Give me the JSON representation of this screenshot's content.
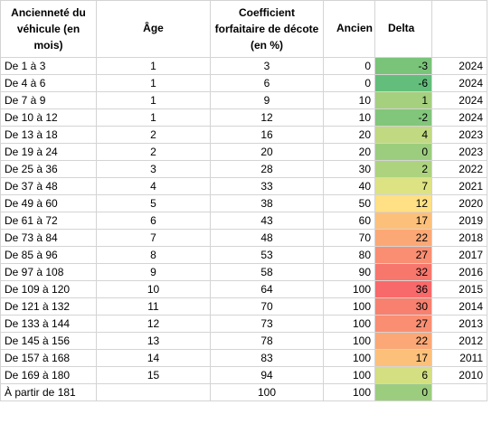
{
  "headers": {
    "anciennete": "Ancienneté du véhicule (en mois)",
    "age": "Âge",
    "coefficient": "Coefficient forfaitaire de décote (en %)",
    "ancien": "Ancien",
    "delta": "Delta",
    "year": ""
  },
  "rows": [
    {
      "label": "De 1 à 3",
      "age": "1",
      "coef": "3",
      "ancien": "0",
      "delta": "-3",
      "year": "2024",
      "color": "#7ac47a"
    },
    {
      "label": "De 4 à 6",
      "age": "1",
      "coef": "6",
      "ancien": "0",
      "delta": "-6",
      "year": "2024",
      "color": "#63be7b"
    },
    {
      "label": "De 7 à 9",
      "age": "1",
      "coef": "9",
      "ancien": "10",
      "delta": "1",
      "year": "2024",
      "color": "#a5d07e"
    },
    {
      "label": "De 10 à 12",
      "age": "1",
      "coef": "12",
      "ancien": "10",
      "delta": "-2",
      "year": "2024",
      "color": "#82c67c"
    },
    {
      "label": "De 13 à 18",
      "age": "2",
      "coef": "16",
      "ancien": "20",
      "delta": "4",
      "year": "2023",
      "color": "#c1d980"
    },
    {
      "label": "De 19 à 24",
      "age": "2",
      "coef": "20",
      "ancien": "20",
      "delta": "0",
      "year": "2023",
      "color": "#9ccd7e"
    },
    {
      "label": "De 25 à 36",
      "age": "3",
      "coef": "28",
      "ancien": "30",
      "delta": "2",
      "year": "2022",
      "color": "#add37f"
    },
    {
      "label": "De 37 à 48",
      "age": "4",
      "coef": "33",
      "ancien": "40",
      "delta": "7",
      "year": "2021",
      "color": "#dde282"
    },
    {
      "label": "De 49 à 60",
      "age": "5",
      "coef": "38",
      "ancien": "50",
      "delta": "12",
      "year": "2020",
      "color": "#ffe084"
    },
    {
      "label": "De 61 à 72",
      "age": "6",
      "coef": "43",
      "ancien": "60",
      "delta": "17",
      "year": "2019",
      "color": "#fcc07b"
    },
    {
      "label": "De 73 à 84",
      "age": "7",
      "coef": "48",
      "ancien": "70",
      "delta": "22",
      "year": "2018",
      "color": "#fba876"
    },
    {
      "label": "De 85 à 96",
      "age": "8",
      "coef": "53",
      "ancien": "80",
      "delta": "27",
      "year": "2017",
      "color": "#f98e72"
    },
    {
      "label": "De 97 à 108",
      "age": "9",
      "coef": "58",
      "ancien": "90",
      "delta": "32",
      "year": "2016",
      "color": "#f8776d"
    },
    {
      "label": "De 109 à 120",
      "age": "10",
      "coef": "64",
      "ancien": "100",
      "delta": "36",
      "year": "2015",
      "color": "#f8696b"
    },
    {
      "label": "De 121 à 132",
      "age": "11",
      "coef": "70",
      "ancien": "100",
      "delta": "30",
      "year": "2014",
      "color": "#f8806f"
    },
    {
      "label": "De 133 à 144",
      "age": "12",
      "coef": "73",
      "ancien": "100",
      "delta": "27",
      "year": "2013",
      "color": "#f98e72"
    },
    {
      "label": "De 145 à 156",
      "age": "13",
      "coef": "78",
      "ancien": "100",
      "delta": "22",
      "year": "2012",
      "color": "#fba876"
    },
    {
      "label": "De 157 à 168",
      "age": "14",
      "coef": "83",
      "ancien": "100",
      "delta": "17",
      "year": "2011",
      "color": "#fcc07b"
    },
    {
      "label": "De 169 à 180",
      "age": "15",
      "coef": "94",
      "ancien": "100",
      "delta": "6",
      "year": "2010",
      "color": "#d3df81"
    },
    {
      "label": "À partir de 181",
      "age": "",
      "coef": "100",
      "ancien": "100",
      "delta": "0",
      "year": "",
      "color": "#9ccd7e"
    }
  ]
}
